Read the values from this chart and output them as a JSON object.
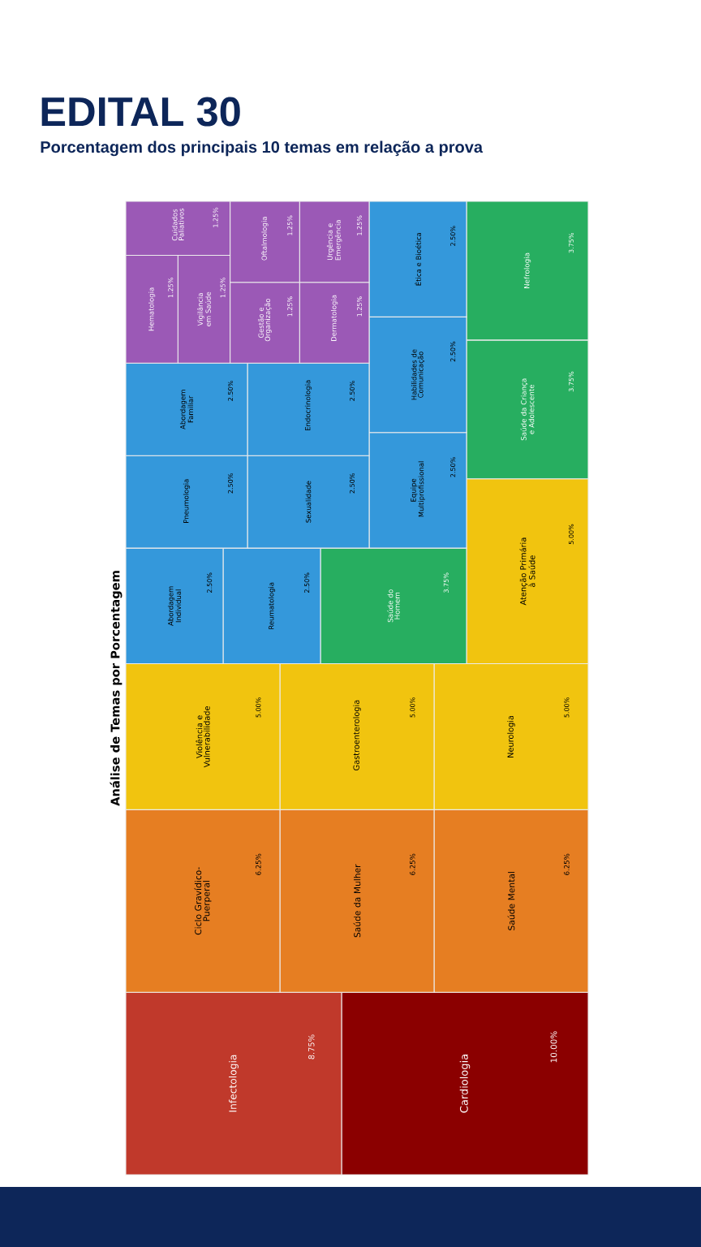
{
  "chart_data": {
    "type": "other",
    "title": "EDITAL 30",
    "subtitle": "Porcentagem dos principais 10 temas em relação a prova",
    "annotations": [
      "Análise de Temas por Porcentagem"
    ],
    "categories": [
      "Cardiologia",
      "Infectologia",
      "Saúde Mental",
      "Saúde da Mulher",
      "Ciclo Gravídico-Puerperal",
      "Neurologia",
      "Gastroenterologia",
      "Violência e Vulnerabilidade",
      "Atenção Primária à Saúde",
      "Saúde da Criança e Adolescente",
      "Nefrologia",
      "Saúde do Homem",
      "Reumatologia",
      "Abordagem Individual",
      "Equipe Multiprofissional",
      "Habilidades de Comunicação",
      "Ética e Bioética",
      "Sexualidade",
      "Pneumologia",
      "Endocrinologia",
      "Abordagem Familiar",
      "Dermatologia",
      "Urgência e Emergência",
      "Gestão e Organização",
      "Oftalmologia",
      "Vigilância em Saúde",
      "Hematologia",
      "Cuidados Paliativos"
    ],
    "values": [
      10,
      8.75,
      6.25,
      6.25,
      6.25,
      5,
      5,
      5,
      5,
      3.75,
      3.75,
      3.75,
      2.5,
      2.5,
      2.5,
      2.5,
      2.5,
      2.5,
      2.5,
      2.5,
      2.5,
      1.25,
      1.25,
      1.25,
      1.25,
      1.25,
      1.25,
      1.25
    ],
    "value_labels": [
      "10.00%",
      "8.75%",
      "6.25%",
      "6.25%",
      "6.25%",
      "5.00%",
      "5.00%",
      "5.00%",
      "5.00%",
      "3.75%",
      "3.75%",
      "3.75%",
      "2.50%",
      "2.50%",
      "2.50%",
      "2.50%",
      "2.50%",
      "2.50%",
      "2.50%",
      "2.50%",
      "2.50%",
      "1.25%",
      "1.25%",
      "1.25%",
      "1.25%",
      "1.25%",
      "1.25%",
      "1.25%"
    ],
    "colors": [
      "#8b0000",
      "#c0392b",
      "#e67e22",
      "#e67e22",
      "#e67e22",
      "#f1c40f",
      "#f1c40f",
      "#f1c40f",
      "#f1c40f",
      "#27ae60",
      "#27ae60",
      "#27ae60",
      "#3498db",
      "#3498db",
      "#3498db",
      "#3498db",
      "#3498db",
      "#3498db",
      "#3498db",
      "#3498db",
      "#3498db",
      "#9b59b6",
      "#9b59b6",
      "#9b59b6",
      "#9b59b6",
      "#9b59b6",
      "#9b59b6",
      "#9b59b6"
    ]
  }
}
